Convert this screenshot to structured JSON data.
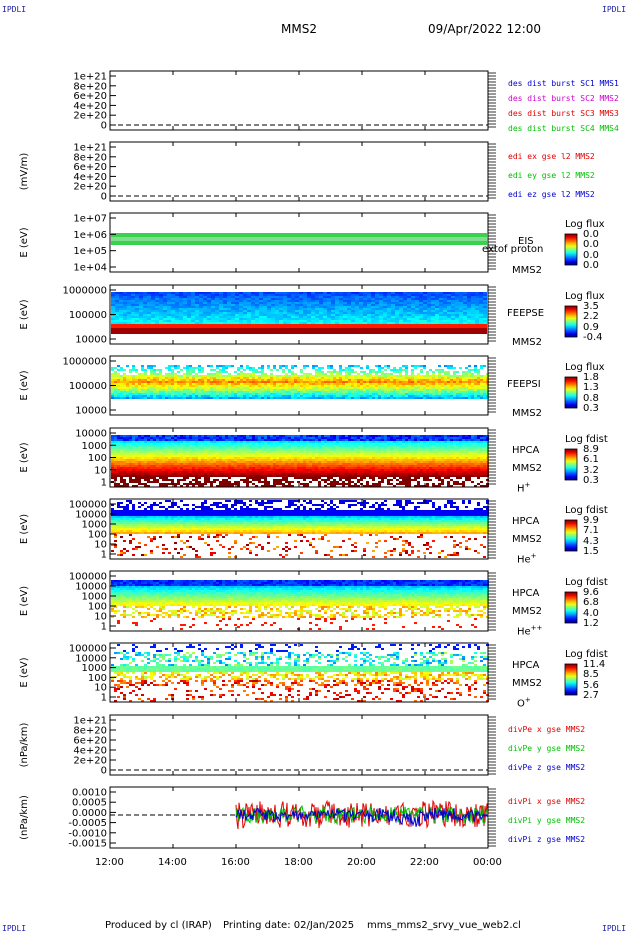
{
  "header": {
    "corner_label": "IPDLI",
    "satellite": "MMS2",
    "datetime": "09/Apr/2022 12:00"
  },
  "footer": {
    "produced_by": "Produced by cl (IRAP)",
    "printing_date": "Printing date: 02/Jan/2025",
    "script": "mms_mms2_srvy_vue_web2.cl"
  },
  "colors": {
    "red": "#e00000",
    "magenta": "#d000d0",
    "green": "#00c000",
    "blue": "#0000d0"
  },
  "x_axis": {
    "ticks": [
      "12:00",
      "14:00",
      "16:00",
      "18:00",
      "20:00",
      "22:00",
      "00:00"
    ]
  },
  "panels": [
    {
      "id": "des-dist",
      "ylabel": "",
      "yticks": [
        "1e+21",
        "8e+20",
        "6e+20",
        "4e+20",
        "2e+20",
        "0"
      ],
      "legend": [
        {
          "text": "des dist burst SC1 MMS1",
          "color": "#0000d0"
        },
        {
          "text": "des dist burst SC2 MMS2",
          "color": "#d000d0"
        },
        {
          "text": "des dist burst SC3 MMS3",
          "color": "#e00000"
        },
        {
          "text": "des dist burst SC4 MMS4",
          "color": "#00c000"
        }
      ]
    },
    {
      "id": "edi",
      "ylabel": "(mV/m)",
      "yticks": [
        "1e+21",
        "8e+20",
        "6e+20",
        "4e+20",
        "2e+20",
        "0"
      ],
      "legend": [
        {
          "text": "edi ex gse l2 MMS2",
          "color": "#e00000"
        },
        {
          "text": "edi ey gse l2 MMS2",
          "color": "#00c000"
        },
        {
          "text": "edi ez gse l2 MMS2",
          "color": "#0000d0"
        }
      ]
    },
    {
      "id": "eis",
      "ylabel": "E (eV)",
      "yticks": [
        "1e+07",
        "1e+06",
        "1e+05",
        "1e+04"
      ],
      "side_labels": [
        "EIS",
        "MMS2"
      ],
      "overlap_text": "extof proton",
      "cb_title": "Log flux",
      "cb_values": [
        "0.0",
        "0.0",
        "0.0",
        "0.0"
      ]
    },
    {
      "id": "feepse",
      "ylabel": "E (eV)",
      "yticks": [
        "1000000",
        "100000",
        "10000"
      ],
      "side_labels": [
        "FEEPSE",
        "MMS2"
      ],
      "cb_title": "Log flux",
      "cb_values": [
        "3.5",
        "2.2",
        "0.9",
        "-0.4"
      ]
    },
    {
      "id": "feepsi",
      "ylabel": "E (eV)",
      "yticks": [
        "1000000",
        "100000",
        "10000"
      ],
      "side_labels": [
        "FEEPSI",
        "MMS2"
      ],
      "cb_title": "Log flux",
      "cb_values": [
        "1.8",
        "1.3",
        "0.8",
        "0.3"
      ]
    },
    {
      "id": "hpca-h",
      "ylabel": "E (eV)",
      "yticks": [
        "10000",
        "1000",
        "100",
        "10",
        "1"
      ],
      "side_labels": [
        "HPCA",
        "MMS2"
      ],
      "species": "H",
      "species_sup": "+",
      "cb_title": "Log fdist",
      "cb_values": [
        "8.9",
        "6.1",
        "3.2",
        "0.3"
      ]
    },
    {
      "id": "hpca-he",
      "ylabel": "E (eV)",
      "yticks": [
        "100000",
        "10000",
        "1000",
        "100",
        "10",
        "1"
      ],
      "side_labels": [
        "HPCA",
        "MMS2"
      ],
      "species": "He",
      "species_sup": "+",
      "cb_title": "Log fdist",
      "cb_values": [
        "9.9",
        "7.1",
        "4.3",
        "1.5"
      ]
    },
    {
      "id": "hpca-he2",
      "ylabel": "E (eV)",
      "yticks": [
        "100000",
        "10000",
        "1000",
        "100",
        "10",
        "1"
      ],
      "side_labels": [
        "HPCA",
        "MMS2"
      ],
      "species": "He",
      "species_sup": "++",
      "cb_title": "Log fdist",
      "cb_values": [
        "9.6",
        "6.8",
        "4.0",
        "1.2"
      ]
    },
    {
      "id": "hpca-o",
      "ylabel": "E (eV)",
      "yticks": [
        "100000",
        "10000",
        "1000",
        "100",
        "10",
        "1"
      ],
      "side_labels": [
        "HPCA",
        "MMS2"
      ],
      "species": "O",
      "species_sup": "+",
      "cb_title": "Log fdist",
      "cb_values": [
        "11.4",
        "8.5",
        "5.6",
        "2.7"
      ]
    },
    {
      "id": "divpe",
      "ylabel": "(nPa/km)",
      "yticks": [
        "1e+21",
        "8e+20",
        "6e+20",
        "4e+20",
        "2e+20",
        "0"
      ],
      "legend": [
        {
          "text": "divPe x gse MMS2",
          "color": "#e00000"
        },
        {
          "text": "divPe y gse MMS2",
          "color": "#00c000"
        },
        {
          "text": "divPe z gse MMS2",
          "color": "#0000d0"
        }
      ]
    },
    {
      "id": "divpi",
      "ylabel": "(nPa/km)",
      "yticks": [
        "0.0010",
        "0.0005",
        "0.0000",
        "-0.0005",
        "-0.0010",
        "-0.0015"
      ],
      "legend": [
        {
          "text": "divPi x gse MMS2",
          "color": "#e00000"
        },
        {
          "text": "divPi y gse MMS2",
          "color": "#00c000"
        },
        {
          "text": "divPi z gse MMS2",
          "color": "#0000d0"
        }
      ]
    }
  ],
  "chart_data": [
    {
      "type": "line",
      "title": "",
      "series": [],
      "ylim": [
        0,
        1e+21
      ],
      "note_visible": "empty panel with dashed zero line"
    },
    {
      "type": "line",
      "ylabel": "(mV/m)",
      "series": [],
      "ylim": [
        0,
        1e+21
      ]
    },
    {
      "type": "heatmap",
      "ylabel": "E (eV)",
      "log_y": true,
      "ylim": [
        10000,
        10000000
      ],
      "color_scale": "Log flux",
      "range": [
        0.0,
        0.0
      ]
    },
    {
      "type": "heatmap",
      "ylabel": "E (eV)",
      "log_y": true,
      "ylim": [
        10000,
        1000000
      ],
      "color_scale": "Log flux",
      "range": [
        -0.4,
        3.5
      ]
    },
    {
      "type": "heatmap",
      "ylabel": "E (eV)",
      "log_y": true,
      "ylim": [
        10000,
        1000000
      ],
      "color_scale": "Log flux",
      "range": [
        0.3,
        1.8
      ]
    },
    {
      "type": "heatmap",
      "ylabel": "E (eV)",
      "log_y": true,
      "ylim": [
        1,
        10000
      ],
      "color_scale": "Log fdist",
      "range": [
        0.3,
        8.9
      ]
    },
    {
      "type": "heatmap",
      "ylabel": "E (eV)",
      "log_y": true,
      "ylim": [
        1,
        100000
      ],
      "color_scale": "Log fdist",
      "range": [
        1.5,
        9.9
      ]
    },
    {
      "type": "heatmap",
      "ylabel": "E (eV)",
      "log_y": true,
      "ylim": [
        1,
        100000
      ],
      "color_scale": "Log fdist",
      "range": [
        1.2,
        9.6
      ]
    },
    {
      "type": "heatmap",
      "ylabel": "E (eV)",
      "log_y": true,
      "ylim": [
        1,
        100000
      ],
      "color_scale": "Log fdist",
      "range": [
        2.7,
        11.4
      ]
    },
    {
      "type": "line",
      "ylabel": "(nPa/km)",
      "series": [],
      "ylim": [
        0,
        1e+21
      ]
    },
    {
      "type": "line",
      "ylabel": "(nPa/km)",
      "ylim": [
        -0.0015,
        0.001
      ],
      "x_start": "16:00",
      "x_end": "00:00",
      "series": [
        {
          "name": "divPi x gse MMS2"
        },
        {
          "name": "divPi y gse MMS2"
        },
        {
          "name": "divPi z gse MMS2"
        }
      ]
    }
  ]
}
